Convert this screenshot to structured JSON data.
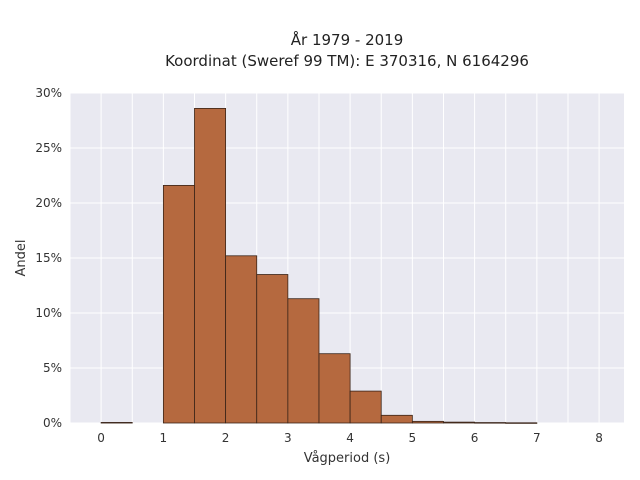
{
  "chart_data": {
    "type": "bar",
    "title": "År 1979 - 2019",
    "subtitle": "Koordinat (Sweref 99 TM): E 370316, N 6164296",
    "xlabel": "Vågperiod (s)",
    "ylabel": "Andel",
    "xlim": [
      -0.5,
      8.4
    ],
    "ylim": [
      0,
      30
    ],
    "x_ticks": [
      0,
      1,
      2,
      3,
      4,
      5,
      6,
      7,
      8
    ],
    "x_tick_labels": [
      "0",
      "1",
      "2",
      "3",
      "4",
      "5",
      "6",
      "7",
      "8"
    ],
    "y_ticks": [
      0,
      5,
      10,
      15,
      20,
      25,
      30
    ],
    "y_tick_labels": [
      "0%",
      "5%",
      "10%",
      "15%",
      "20%",
      "25%",
      "30%"
    ],
    "grid": true,
    "bin_width": 0.5,
    "bin_starts": [
      0,
      0.5,
      1.0,
      1.5,
      2.0,
      2.5,
      3.0,
      3.5,
      4.0,
      4.5,
      5.0,
      5.5,
      6.0,
      6.5
    ],
    "values": [
      0.05,
      0,
      21.6,
      28.6,
      15.2,
      13.5,
      11.3,
      6.3,
      2.9,
      0.7,
      0.15,
      0.08,
      0.04,
      0.02
    ],
    "bar_color": "#b5693f",
    "bar_edge_color": "#3a2418",
    "background_color": "#e9e9f1",
    "grid_color": "#ffffff"
  }
}
